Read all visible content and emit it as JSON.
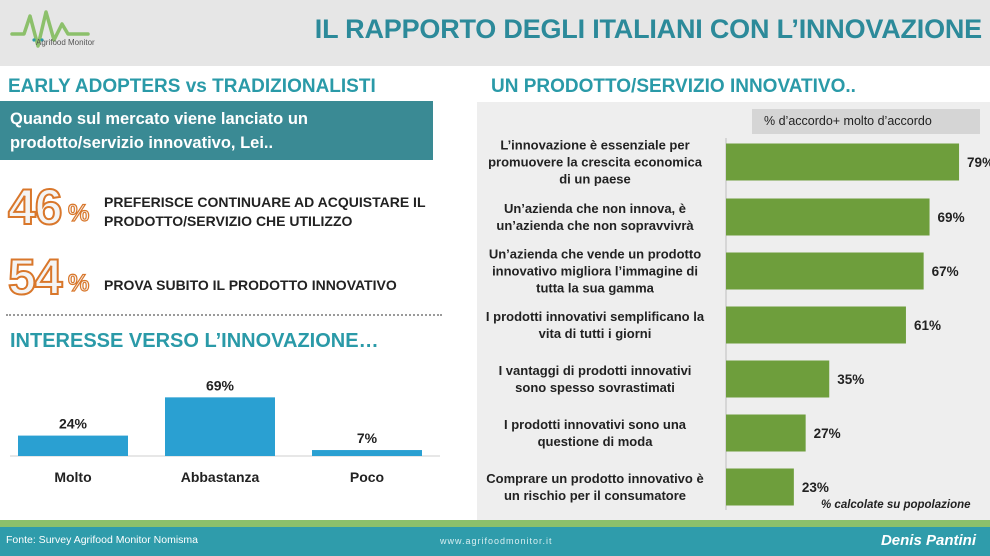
{
  "header": {
    "title": "IL RAPPORTO DEGLI ITALIANI CON L’INNOVAZIONE",
    "logo_text": "Agrifood Monitor"
  },
  "left": {
    "heading": "EARLY ADOPTERS  vs TRADIZIONALISTI",
    "question_line1": "Quando sul mercato viene lanciato un",
    "question_line2": "prodotto/servizio innovativo, Lei..",
    "stat1": {
      "value": "46",
      "sign": "%",
      "text_line1": "PREFERISCE CONTINUARE AD ACQUISTARE IL",
      "text_line2": "PRODOTTO/SERVIZIO CHE UTILIZZO"
    },
    "stat2": {
      "value": "54",
      "sign": "%",
      "text": "PROVA SUBITO IL PRODOTTO INNOVATIVO"
    },
    "interest_heading": "INTERESSE VERSO L’INNOVAZIONE…"
  },
  "right": {
    "heading": "UN PRODOTTO/SERVIZIO INNOVATIVO..",
    "legend": "% d’accordo+ molto d’accordo",
    "note": "% calcolate su popolazione"
  },
  "footer": {
    "source": "Fonte: Survey Agrifood Monitor Nomisma",
    "url": "www.agrifoodmonitor.it",
    "author": "Denis Pantini"
  },
  "colors": {
    "teal": "#2a9aa8",
    "dark_teal": "#3a8a94",
    "orange": "#d9772b",
    "bar_blue": "#2aa0d2",
    "bar_green": "#6e9e3c",
    "footer": "#2f9cab",
    "footer_line": "#8cc06b"
  },
  "chart_data": [
    {
      "type": "bar",
      "categories": [
        "Molto",
        "Abbastanza",
        "Poco"
      ],
      "values": [
        24,
        69,
        7
      ],
      "value_labels": [
        "24%",
        "69%",
        "7%"
      ],
      "title": "INTERESSE VERSO L’INNOVAZIONE…",
      "ylim": [
        0,
        100
      ]
    },
    {
      "type": "bar",
      "orientation": "horizontal",
      "title": "UN PRODOTTO/SERVIZIO INNOVATIVO..",
      "legend": "% d’accordo+ molto d’accordo",
      "categories": [
        [
          "L’innovazione è essenziale per",
          "promuovere la crescita economica",
          "di un paese"
        ],
        [
          "Un’azienda che non innova, è",
          "un’azienda che non sopravvivrà"
        ],
        [
          "Un’azienda che vende un prodotto",
          "innovativo migliora l’immagine di",
          "tutta la sua gamma"
        ],
        [
          "I prodotti innovativi semplificano la",
          "vita di tutti i giorni"
        ],
        [
          "I vantaggi di prodotti innovativi",
          "sono spesso sovrastimati"
        ],
        [
          "I prodotti innovativi sono una",
          "questione di moda"
        ],
        [
          "Comprare un prodotto innovativo è",
          "un rischio per il consumatore"
        ]
      ],
      "values": [
        79,
        69,
        67,
        61,
        35,
        27,
        23
      ],
      "value_labels": [
        "79%",
        "69%",
        "67%",
        "61%",
        "35%",
        "27%",
        "23%"
      ],
      "xlim": [
        0,
        100
      ]
    }
  ]
}
